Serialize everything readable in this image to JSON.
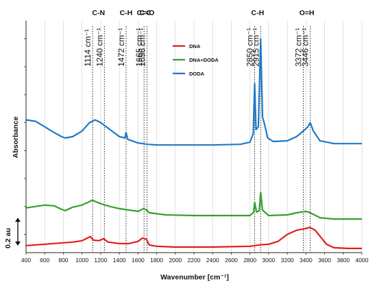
{
  "chart_data": {
    "type": "line",
    "title": "",
    "xlabel": "Wavenumber [cm⁻¹]",
    "ylabel": "Absorbance",
    "xlim": [
      400,
      4000
    ],
    "x_ticks": [
      400,
      600,
      800,
      1000,
      1200,
      1400,
      1600,
      1800,
      2000,
      2200,
      2400,
      2600,
      2800,
      3000,
      3200,
      3400,
      3600,
      3800,
      4000
    ],
    "grid": "vertical",
    "legend_position": "top-center",
    "scale_bar_label": "0.2 au",
    "band_groups": [
      {
        "label": "C-N",
        "x": 1177
      },
      {
        "label": "C-H",
        "x": 1472
      },
      {
        "label": "C=C",
        "x": 1665
      },
      {
        "label": "C=O",
        "x": 1696
      },
      {
        "label": "C-H",
        "x": 2882
      },
      {
        "label": "O=H",
        "x": 3409
      }
    ],
    "marked_wavenumbers": [
      {
        "value": "1114",
        "unit": "cm⁻¹",
        "x": 1114
      },
      {
        "value": "1240",
        "unit": "cm⁻¹",
        "x": 1240
      },
      {
        "value": "1472",
        "unit": "cm⁻¹",
        "x": 1472
      },
      {
        "value": "1665",
        "unit": "cm⁻¹",
        "x": 1665
      },
      {
        "value": "1696",
        "unit": "cm⁻¹",
        "x": 1696
      },
      {
        "value": "2850",
        "unit": "cm⁻¹",
        "x": 2850
      },
      {
        "value": "2915",
        "unit": "cm⁻¹",
        "x": 2915
      },
      {
        "value": "3372",
        "unit": "cm⁻¹",
        "x": 3372
      },
      {
        "value": "3446",
        "unit": "cm⁻¹",
        "x": 3446
      }
    ],
    "series": [
      {
        "name": "DNA",
        "color": "#e41a1c",
        "points": [
          [
            400,
            0.02
          ],
          [
            600,
            0.03
          ],
          [
            800,
            0.04
          ],
          [
            900,
            0.045
          ],
          [
            1000,
            0.055
          ],
          [
            1060,
            0.075
          ],
          [
            1090,
            0.085
          ],
          [
            1120,
            0.06
          ],
          [
            1180,
            0.055
          ],
          [
            1230,
            0.07
          ],
          [
            1280,
            0.045
          ],
          [
            1400,
            0.035
          ],
          [
            1500,
            0.035
          ],
          [
            1600,
            0.05
          ],
          [
            1650,
            0.075
          ],
          [
            1690,
            0.065
          ],
          [
            1720,
            0.025
          ],
          [
            1800,
            0.015
          ],
          [
            2000,
            0.01
          ],
          [
            2400,
            0.01
          ],
          [
            2800,
            0.015
          ],
          [
            2850,
            0.02
          ],
          [
            2900,
            0.025
          ],
          [
            3000,
            0.03
          ],
          [
            3100,
            0.05
          ],
          [
            3200,
            0.1
          ],
          [
            3300,
            0.13
          ],
          [
            3380,
            0.14
          ],
          [
            3440,
            0.15
          ],
          [
            3500,
            0.13
          ],
          [
            3560,
            0.08
          ],
          [
            3620,
            0.03
          ],
          [
            3700,
            0.005
          ],
          [
            3850,
            0.0
          ],
          [
            4000,
            0.0
          ]
        ]
      },
      {
        "name": "DNA+DODA",
        "color": "#33a02c",
        "points": [
          [
            400,
            0.29
          ],
          [
            500,
            0.3
          ],
          [
            600,
            0.31
          ],
          [
            700,
            0.305
          ],
          [
            780,
            0.28
          ],
          [
            820,
            0.27
          ],
          [
            900,
            0.295
          ],
          [
            1000,
            0.31
          ],
          [
            1080,
            0.335
          ],
          [
            1110,
            0.345
          ],
          [
            1200,
            0.32
          ],
          [
            1300,
            0.3
          ],
          [
            1400,
            0.285
          ],
          [
            1500,
            0.275
          ],
          [
            1600,
            0.265
          ],
          [
            1660,
            0.285
          ],
          [
            1690,
            0.275
          ],
          [
            1720,
            0.255
          ],
          [
            1900,
            0.24
          ],
          [
            2200,
            0.235
          ],
          [
            2500,
            0.235
          ],
          [
            2800,
            0.235
          ],
          [
            2840,
            0.26
          ],
          [
            2850,
            0.33
          ],
          [
            2870,
            0.26
          ],
          [
            2900,
            0.27
          ],
          [
            2915,
            0.4
          ],
          [
            2935,
            0.275
          ],
          [
            3000,
            0.235
          ],
          [
            3200,
            0.24
          ],
          [
            3300,
            0.255
          ],
          [
            3400,
            0.265
          ],
          [
            3446,
            0.255
          ],
          [
            3550,
            0.22
          ],
          [
            3700,
            0.21
          ],
          [
            4000,
            0.21
          ]
        ]
      },
      {
        "name": "DODA",
        "color": "#1f78c8",
        "points": [
          [
            400,
            0.92
          ],
          [
            500,
            0.91
          ],
          [
            600,
            0.87
          ],
          [
            700,
            0.83
          ],
          [
            780,
            0.8
          ],
          [
            820,
            0.79
          ],
          [
            900,
            0.8
          ],
          [
            1000,
            0.84
          ],
          [
            1080,
            0.9
          ],
          [
            1140,
            0.92
          ],
          [
            1200,
            0.9
          ],
          [
            1300,
            0.85
          ],
          [
            1400,
            0.8
          ],
          [
            1460,
            0.79
          ],
          [
            1472,
            0.83
          ],
          [
            1490,
            0.78
          ],
          [
            1600,
            0.755
          ],
          [
            1700,
            0.745
          ],
          [
            1800,
            0.74
          ],
          [
            2000,
            0.74
          ],
          [
            2400,
            0.74
          ],
          [
            2700,
            0.745
          ],
          [
            2800,
            0.76
          ],
          [
            2835,
            0.82
          ],
          [
            2850,
            1.18
          ],
          [
            2865,
            0.85
          ],
          [
            2890,
            0.87
          ],
          [
            2915,
            1.5
          ],
          [
            2935,
            0.94
          ],
          [
            2960,
            0.88
          ],
          [
            2990,
            0.79
          ],
          [
            3050,
            0.765
          ],
          [
            3200,
            0.77
          ],
          [
            3300,
            0.8
          ],
          [
            3372,
            0.84
          ],
          [
            3420,
            0.87
          ],
          [
            3446,
            0.9
          ],
          [
            3480,
            0.84
          ],
          [
            3550,
            0.77
          ],
          [
            3700,
            0.75
          ],
          [
            4000,
            0.75
          ]
        ]
      }
    ]
  }
}
